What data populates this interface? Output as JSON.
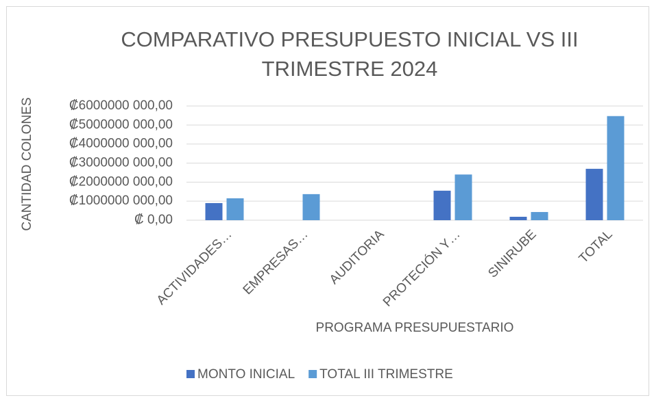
{
  "chart_data": {
    "type": "bar",
    "title": "COMPARATIVO PRESUPUESTO INICIAL VS III TRIMESTRE 2024",
    "x_label": "PROGRAMA PRESUPUESTARIO",
    "y_label": "CANTIDAD COLONES",
    "categories": [
      "ACTIVIDADES…",
      "EMPRESAS…",
      "AUDITORIA",
      "PROTECIÓN Y…",
      "SINIRUBE",
      "TOTAL"
    ],
    "series": [
      {
        "name": "MONTO INICIAL",
        "color": "#4472c4",
        "values": [
          900000000,
          0,
          0,
          1550000000,
          180000000,
          2700000000
        ]
      },
      {
        "name": "TOTAL III TRIMESTRE",
        "color": "#5b9bd5",
        "values": [
          1150000000,
          1370000000,
          0,
          2400000000,
          430000000,
          5470000000
        ]
      }
    ],
    "ylim": [
      0,
      6000000000
    ],
    "yticks": [
      {
        "value": 0,
        "label": "₡ 0,00"
      },
      {
        "value": 1000000000,
        "label": "₡1000000 000,00"
      },
      {
        "value": 2000000000,
        "label": "₡2000000 000,00"
      },
      {
        "value": 3000000000,
        "label": "₡3000000 000,00"
      },
      {
        "value": 4000000000,
        "label": "₡4000000 000,00"
      },
      {
        "value": 5000000000,
        "label": "₡5000000 000,00"
      },
      {
        "value": 6000000000,
        "label": "₡6000000 000,00"
      }
    ],
    "grid": true,
    "legend": "bottom"
  }
}
